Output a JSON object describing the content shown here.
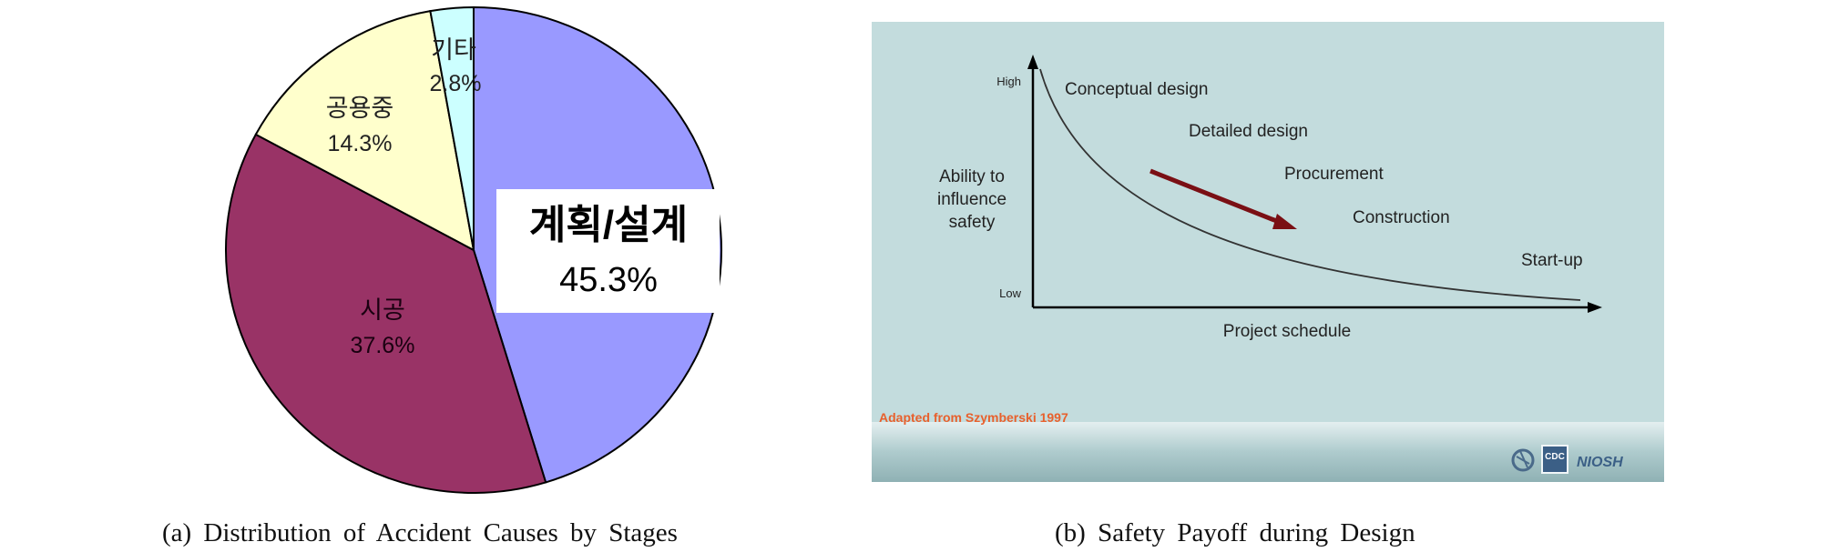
{
  "chart_data": [
    {
      "type": "pie",
      "title": "",
      "slices": [
        {
          "label": "계획/설계",
          "value": 45.3,
          "value_label": "45.3%",
          "color": "#9999ff"
        },
        {
          "label": "시공",
          "value": 37.6,
          "value_label": "37.6%",
          "color": "#993366"
        },
        {
          "label": "공용중",
          "value": 14.3,
          "value_label": "14.3%",
          "color": "#ffffcc"
        },
        {
          "label": "기타",
          "value": 2.8,
          "value_label": "2.8%",
          "color": "#ccffff"
        }
      ],
      "start": "12 o'clock",
      "direction": "clockwise",
      "caption": "(a) Distribution of Accident Causes by Stages"
    },
    {
      "type": "line",
      "title": "",
      "xlabel": "Project schedule",
      "ylabel": "Ability to influence safety",
      "ylabel_lines": [
        "Ability to",
        "influence",
        "safety"
      ],
      "y_high_label": "High",
      "y_low_label": "Low",
      "stages": [
        "Conceptual design",
        "Detailed design",
        "Procurement",
        "Construction",
        "Start-up"
      ],
      "curve_shape": "decreasing",
      "arrow_direction": "down-right",
      "source_note": "Adapted from Szymberski 1997",
      "logos": [
        "HHS",
        "CDC",
        "NIOSH"
      ],
      "background_color": "#c3dcdd",
      "caption": "(b) Safety Payoff during Design"
    }
  ]
}
